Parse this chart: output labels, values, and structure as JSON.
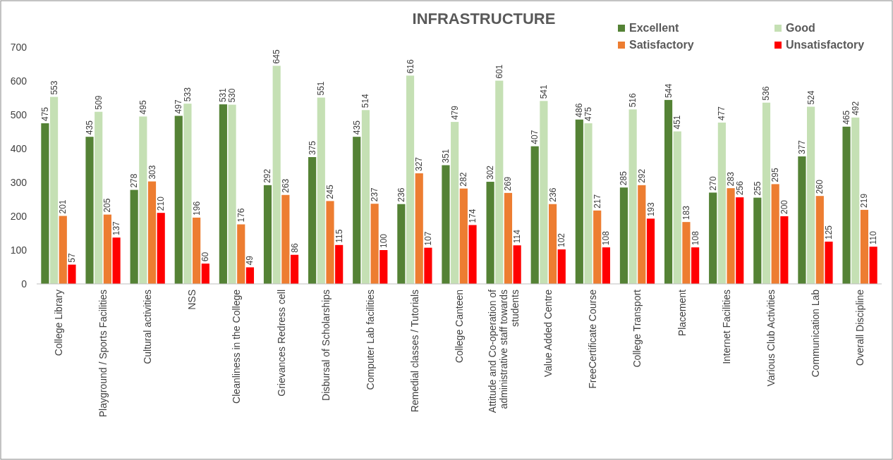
{
  "chart_data": {
    "type": "bar",
    "title": "INFRASTRUCTURE",
    "categories": [
      "College Library",
      "Playground / Sports Facilities",
      "Cultural activities",
      "NSS",
      "Cleanliness in the College",
      "Grievances Redress cell",
      "Disbursal of Scholarships",
      "Computer Lab facilities",
      "Remedial classes / Tutorials",
      "College Canteen",
      "Attitude and Co-operation of administrative staff towards students",
      "Value Added Centre",
      "FreeCertificate Course",
      "College Transport",
      "Placement",
      "Internet Facilities",
      "Various Club Activities",
      "Communication Lab",
      "Overall Discipline"
    ],
    "series": [
      {
        "name": "Excellent",
        "color": "#548235",
        "values": [
          475,
          435,
          278,
          497,
          531,
          292,
          375,
          435,
          236,
          351,
          302,
          407,
          486,
          285,
          544,
          270,
          255,
          377,
          465
        ]
      },
      {
        "name": "Good",
        "color": "#c5e0b4",
        "values": [
          553,
          509,
          495,
          533,
          530,
          645,
          551,
          514,
          616,
          479,
          601,
          541,
          475,
          516,
          451,
          477,
          536,
          524,
          492
        ]
      },
      {
        "name": "Satisfactory",
        "color": "#ed7d31",
        "values": [
          201,
          205,
          303,
          196,
          176,
          263,
          245,
          237,
          327,
          282,
          269,
          236,
          217,
          292,
          183,
          283,
          295,
          260,
          219
        ]
      },
      {
        "name": "Unsatisfactory",
        "color": "#ff0000",
        "values": [
          57,
          137,
          210,
          60,
          49,
          86,
          115,
          100,
          107,
          174,
          114,
          102,
          108,
          193,
          108,
          256,
          200,
          125,
          110
        ]
      }
    ],
    "ylim": [
      0,
      700
    ],
    "yticks": [
      0,
      100,
      200,
      300,
      400,
      500,
      600,
      700
    ],
    "data_labels": true,
    "legend": "top right",
    "grid": false
  }
}
